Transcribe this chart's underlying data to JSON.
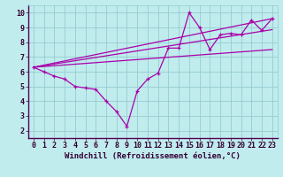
{
  "title": "",
  "xlabel": "Windchill (Refroidissement éolien,°C)",
  "ylabel": "",
  "xlim": [
    -0.5,
    23.5
  ],
  "ylim": [
    1.5,
    10.5
  ],
  "xticks": [
    0,
    1,
    2,
    3,
    4,
    5,
    6,
    7,
    8,
    9,
    10,
    11,
    12,
    13,
    14,
    15,
    16,
    17,
    18,
    19,
    20,
    21,
    22,
    23
  ],
  "yticks": [
    2,
    3,
    4,
    5,
    6,
    7,
    8,
    9,
    10
  ],
  "background_color": "#c0ecee",
  "grid_color": "#96ccd0",
  "line_color": "#aa00aa",
  "series1_x": [
    0,
    1,
    2,
    3,
    4,
    5,
    6,
    7,
    8,
    9,
    10,
    11,
    12,
    13,
    14,
    15,
    16,
    17,
    18,
    19,
    20,
    21,
    22,
    23
  ],
  "series1_y": [
    6.3,
    6.0,
    5.7,
    5.5,
    5.0,
    4.9,
    4.8,
    4.0,
    3.3,
    2.3,
    4.7,
    5.5,
    5.9,
    7.6,
    7.6,
    10.0,
    9.0,
    7.5,
    8.5,
    8.6,
    8.5,
    9.5,
    8.8,
    9.6
  ],
  "series2_x": [
    0,
    23
  ],
  "series2_y": [
    6.3,
    9.6
  ],
  "series3_x": [
    0,
    23
  ],
  "series3_y": [
    6.3,
    8.85
  ],
  "series4_x": [
    0,
    23
  ],
  "series4_y": [
    6.3,
    7.5
  ],
  "font_size_xlabel": 6.5,
  "font_size_ticks": 6.0,
  "axis_bg": "#c0ecee",
  "spine_color": "#330033",
  "xlabel_color": "#330033",
  "tick_color": "#330033"
}
